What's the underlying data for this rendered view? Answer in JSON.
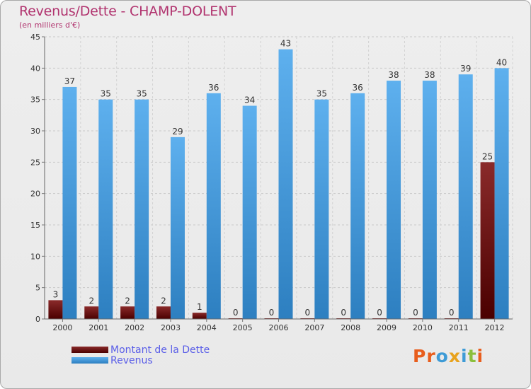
{
  "title": "Revenus/Dette - CHAMP-DOLENT",
  "subtitle": "(en milliers d'€)",
  "colors": {
    "dette": "#7a1414",
    "revenus": "#4a9fe0",
    "title": "#b1346f",
    "legend_text": "#5a5ee8"
  },
  "legend": {
    "dette": "Montant de la Dette",
    "revenus": "Revenus"
  },
  "logo": {
    "text": "Proxiti",
    "letters": [
      "P",
      "r",
      "o",
      "x",
      "i",
      "t",
      "i"
    ],
    "colors": [
      "#e85d1c",
      "#e85d1c",
      "#3e9bd6",
      "#e8a21c",
      "#3e9bd6",
      "#8bbf3c",
      "#e85d1c"
    ]
  },
  "chart_data": {
    "type": "bar",
    "categories": [
      "2000",
      "2001",
      "2002",
      "2003",
      "2004",
      "2005",
      "2006",
      "2007",
      "2008",
      "2009",
      "2010",
      "2011",
      "2012"
    ],
    "series": [
      {
        "name": "Montant de la Dette",
        "values": [
          3,
          2,
          2,
          2,
          1,
          0,
          0,
          0,
          0,
          0,
          0,
          0,
          25
        ]
      },
      {
        "name": "Revenus",
        "values": [
          37,
          35,
          35,
          29,
          36,
          34,
          43,
          35,
          36,
          38,
          38,
          39,
          40
        ]
      }
    ],
    "yticks": [
      "0",
      "5",
      "10",
      "15",
      "20",
      "25",
      "30",
      "35",
      "40",
      "45"
    ],
    "ylim": [
      0,
      45
    ],
    "grid": true
  }
}
